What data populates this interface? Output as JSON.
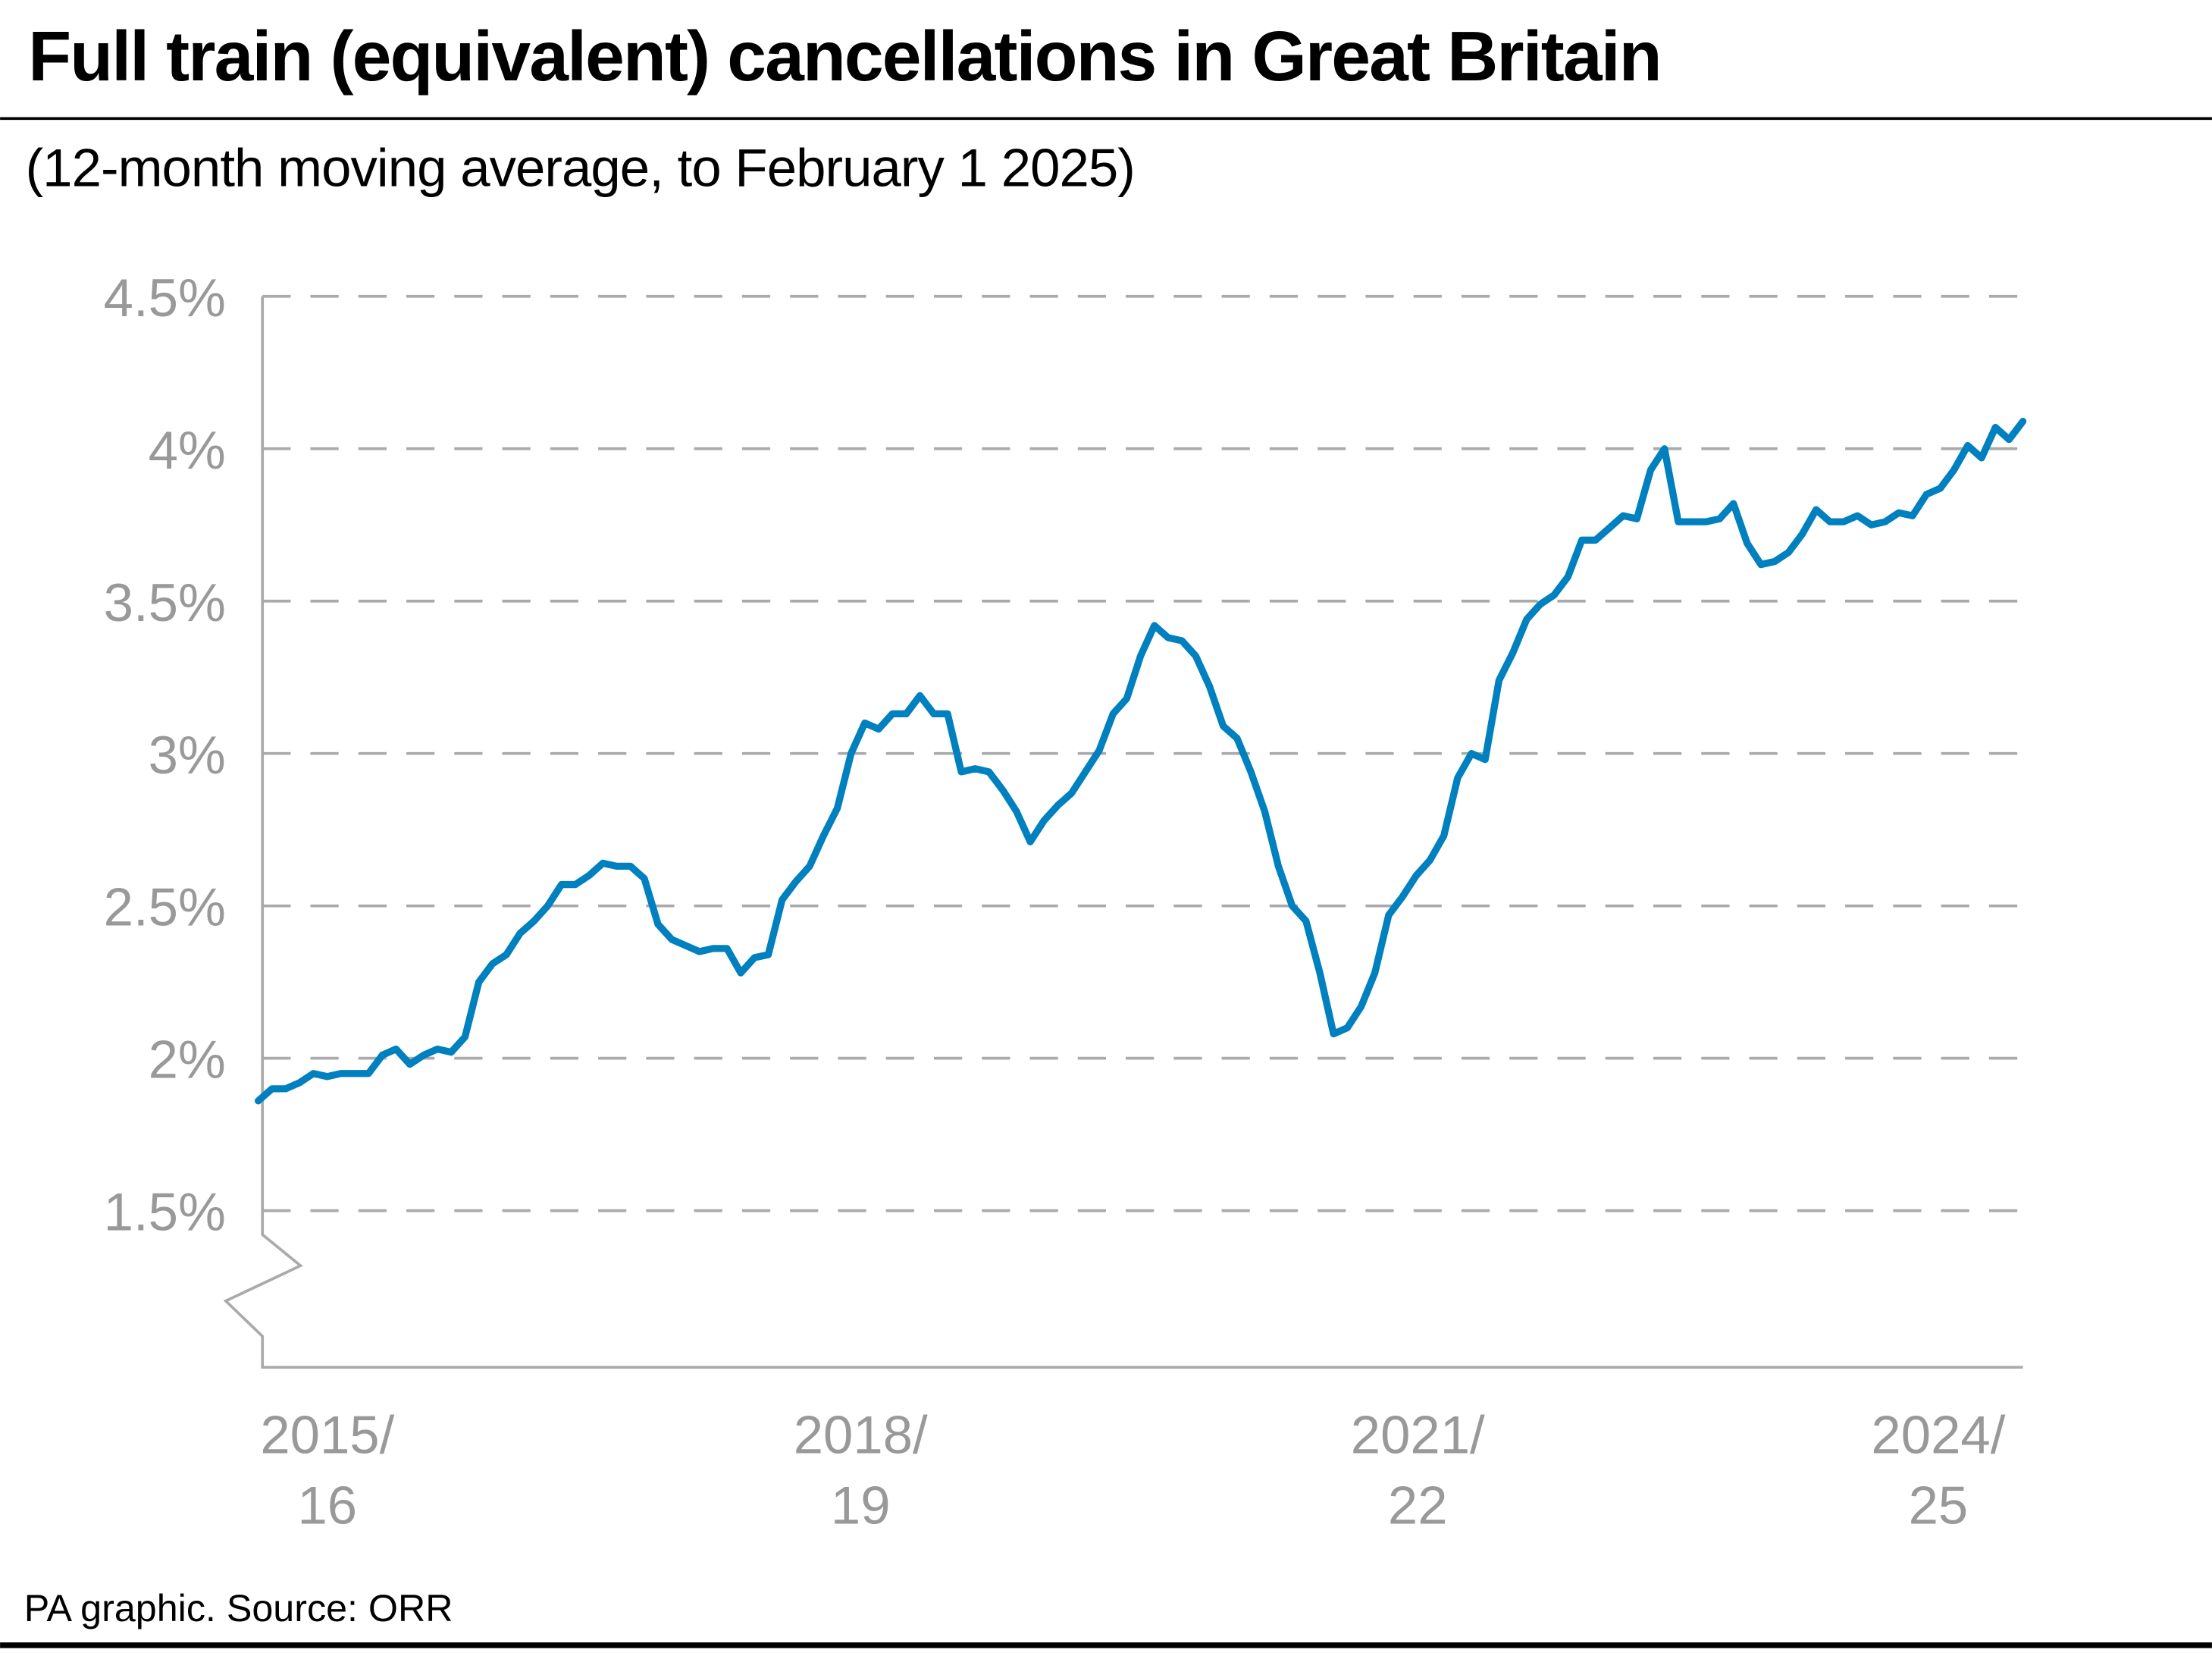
{
  "chart_data": {
    "type": "line",
    "title": "Full train (equivalent) cancellations in Great Britain",
    "subtitle": "(12-month moving average, to February 1 2025)",
    "source": "PA graphic. Source: ORR",
    "ylim": [
      1.5,
      4.5
    ],
    "y_ticks": [
      "4.5%",
      "4%",
      "3.5%",
      "3%",
      "2.5%",
      "2%",
      "1.5%"
    ],
    "y_tick_values": [
      4.5,
      4.0,
      3.5,
      3.0,
      2.5,
      2.0,
      1.5
    ],
    "y_axis_broken": true,
    "grid": "horizontal dashed",
    "x_ticks": [
      {
        "line1": "2015/",
        "line2": "16"
      },
      {
        "line1": "2018/",
        "line2": "19"
      },
      {
        "line1": "2021/",
        "line2": "22"
      },
      {
        "line1": "2024/",
        "line2": "25"
      }
    ],
    "line_color": "#0080bf",
    "grid_color": "#aaaaaa",
    "series": [
      {
        "values": [
          1.86,
          1.9,
          1.9,
          1.92,
          1.95,
          1.94,
          1.95,
          1.95,
          1.95,
          2.01,
          2.03,
          1.98,
          2.01,
          2.03,
          2.02,
          2.07,
          2.25,
          2.31,
          2.34,
          2.41,
          2.45,
          2.5,
          2.57,
          2.57,
          2.6,
          2.64,
          2.63,
          2.63,
          2.59,
          2.44,
          2.39,
          2.37,
          2.35,
          2.36,
          2.36,
          2.28,
          2.33,
          2.34,
          2.52,
          2.58,
          2.63,
          2.73,
          2.82,
          3.0,
          3.1,
          3.08,
          3.13,
          3.13,
          3.19,
          3.13,
          3.13,
          2.94,
          2.95,
          2.94,
          2.88,
          2.81,
          2.71,
          2.78,
          2.83,
          2.87,
          2.94,
          3.01,
          3.13,
          3.18,
          3.32,
          3.42,
          3.38,
          3.37,
          3.32,
          3.22,
          3.09,
          3.05,
          2.94,
          2.81,
          2.63,
          2.5,
          2.45,
          2.28,
          2.08,
          2.1,
          2.17,
          2.28,
          2.47,
          2.53,
          2.6,
          2.65,
          2.73,
          2.92,
          3.0,
          2.98,
          3.24,
          3.33,
          3.44,
          3.49,
          3.52,
          3.58,
          3.7,
          3.7,
          3.74,
          3.78,
          3.77,
          3.93,
          4.0,
          3.76,
          3.76,
          3.76,
          3.77,
          3.82,
          3.69,
          3.62,
          3.63,
          3.66,
          3.72,
          3.8,
          3.76,
          3.76,
          3.78,
          3.75,
          3.76,
          3.79,
          3.78,
          3.85,
          3.87,
          3.93,
          4.01,
          3.97,
          4.07,
          4.03,
          4.09
        ]
      }
    ]
  }
}
